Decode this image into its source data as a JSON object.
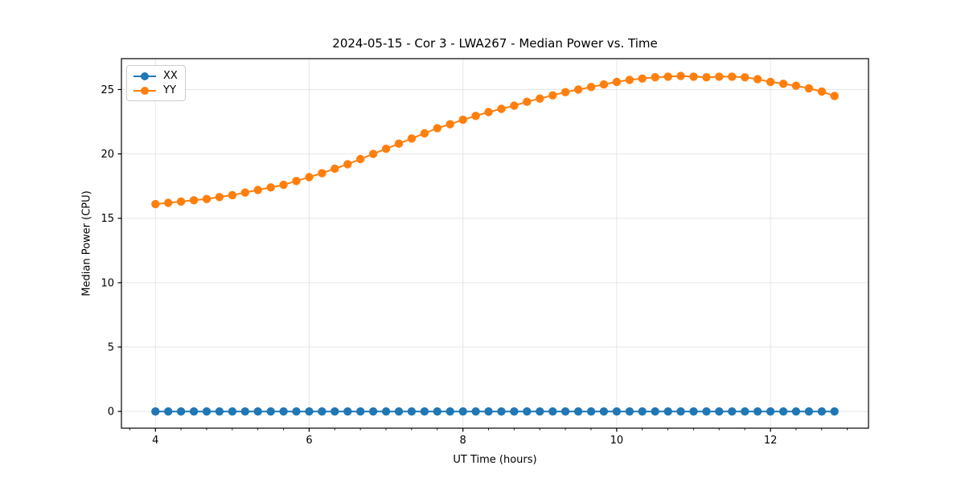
{
  "chart_data": {
    "type": "line",
    "title": "2024-05-15 - Cor 3 - LWA267 - Median Power vs. Time",
    "xlabel": "UT Time (hours)",
    "ylabel": "Median Power (CPU)",
    "xlim": [
      3.558,
      13.275
    ],
    "ylim": [
      -1.3,
      27.4
    ],
    "xticks": [
      4,
      6,
      8,
      10,
      12
    ],
    "yticks": [
      0,
      5,
      10,
      15,
      20,
      25
    ],
    "minor_xtick_interval": 0.3333,
    "grid": true,
    "grid_color": "#e6e6e6",
    "spine_color": "#000000",
    "legend_position": "upper-left",
    "marker": "circle",
    "marker_radius": 5.2,
    "line_width": 2,
    "x": [
      4.0,
      4.167,
      4.333,
      4.5,
      4.667,
      4.833,
      5.0,
      5.167,
      5.333,
      5.5,
      5.667,
      5.833,
      6.0,
      6.167,
      6.333,
      6.5,
      6.667,
      6.833,
      7.0,
      7.167,
      7.333,
      7.5,
      7.667,
      7.833,
      8.0,
      8.167,
      8.333,
      8.5,
      8.667,
      8.833,
      9.0,
      9.167,
      9.333,
      9.5,
      9.667,
      9.833,
      10.0,
      10.167,
      10.333,
      10.5,
      10.667,
      10.833,
      11.0,
      11.167,
      11.333,
      11.5,
      11.667,
      11.833,
      12.0,
      12.167,
      12.333,
      12.5,
      12.667,
      12.833
    ],
    "series": [
      {
        "name": "XX",
        "color": "#1f77b4",
        "values": [
          0,
          0,
          0,
          0,
          0,
          0,
          0,
          0,
          0,
          0,
          0,
          0,
          0,
          0,
          0,
          0,
          0,
          0,
          0,
          0,
          0,
          0,
          0,
          0,
          0,
          0,
          0,
          0,
          0,
          0,
          0,
          0,
          0,
          0,
          0,
          0,
          0,
          0,
          0,
          0,
          0,
          0,
          0,
          0,
          0,
          0,
          0,
          0,
          0,
          0,
          0,
          0,
          0,
          0
        ]
      },
      {
        "name": "YY",
        "color": "#ff7f0e",
        "values": [
          16.1,
          16.2,
          16.3,
          16.4,
          16.5,
          16.65,
          16.8,
          17.0,
          17.2,
          17.4,
          17.6,
          17.9,
          18.2,
          18.5,
          18.85,
          19.2,
          19.6,
          20.0,
          20.4,
          20.8,
          21.2,
          21.6,
          22.0,
          22.3,
          22.65,
          22.95,
          23.25,
          23.5,
          23.75,
          24.05,
          24.3,
          24.55,
          24.8,
          25.0,
          25.2,
          25.4,
          25.6,
          25.75,
          25.85,
          25.95,
          26.0,
          26.05,
          26.0,
          25.95,
          26.0,
          26.0,
          25.95,
          25.8,
          25.6,
          25.45,
          25.3,
          25.1,
          24.85,
          24.5
        ]
      }
    ]
  }
}
